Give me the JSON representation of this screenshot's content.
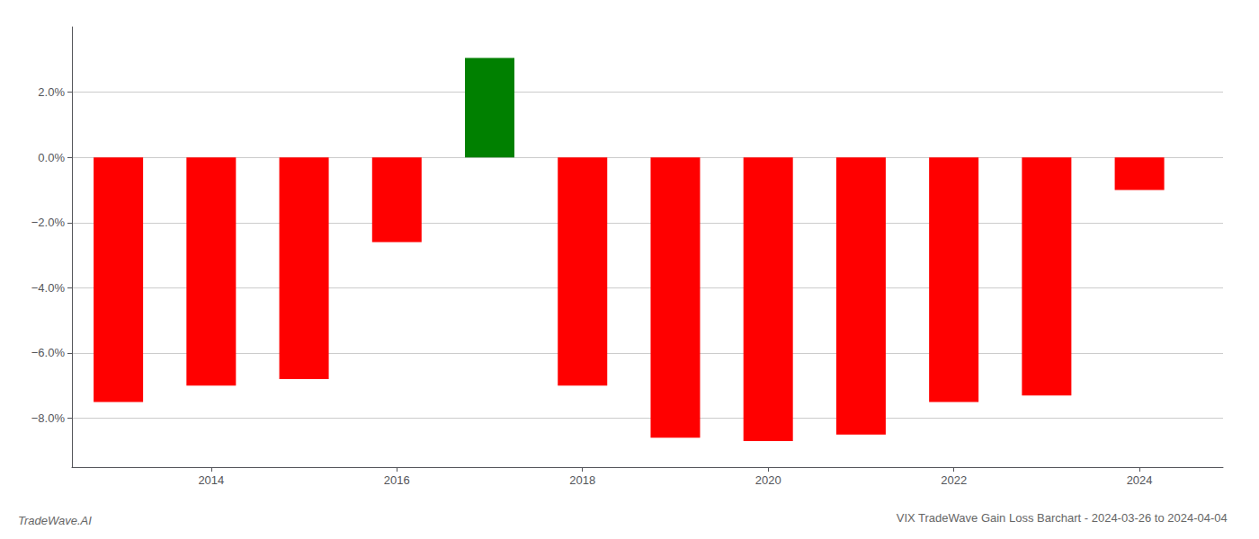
{
  "chart_data": {
    "type": "bar",
    "title": "VIX TradeWave Gain Loss Barchart - 2024-03-26 to 2024-04-04",
    "annotations": [
      "TradeWave.AI"
    ],
    "x": [
      2013,
      2014,
      2015,
      2016,
      2017,
      2018,
      2019,
      2020,
      2021,
      2022,
      2023,
      2024
    ],
    "values": [
      -7.5,
      -7.0,
      -6.8,
      -2.6,
      3.05,
      -7.0,
      -8.6,
      -8.7,
      -8.5,
      -7.5,
      -7.3,
      -1.0
    ],
    "colors": [
      "#ff0000",
      "#ff0000",
      "#ff0000",
      "#ff0000",
      "#008000",
      "#ff0000",
      "#ff0000",
      "#ff0000",
      "#ff0000",
      "#ff0000",
      "#ff0000",
      "#ff0000"
    ],
    "xlim": [
      2012.5,
      2024.9
    ],
    "xticks": [
      2014,
      2016,
      2018,
      2020,
      2022,
      2024
    ],
    "ylim": [
      -9.5,
      4.0
    ],
    "yticks": [
      {
        "value": -8.0,
        "label": "−8.0%"
      },
      {
        "value": -6.0,
        "label": "−6.0%"
      },
      {
        "value": -4.0,
        "label": "−4.0%"
      },
      {
        "value": -2.0,
        "label": "−2.0%"
      },
      {
        "value": 0.0,
        "label": "0.0%"
      },
      {
        "value": 2.0,
        "label": "2.0%"
      }
    ],
    "grid": true
  }
}
